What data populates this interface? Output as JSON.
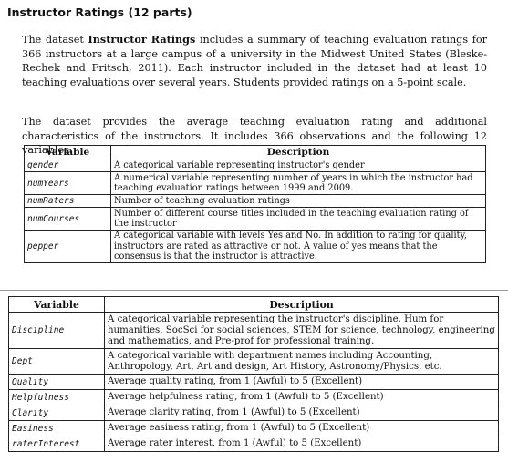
{
  "title": "Instructor Ratings (12 parts)",
  "para1": {
    "before": "The dataset ",
    "bold": "Instructor Ratings",
    "after": " includes a summary of teaching evaluation ratings for 366 instructors at a large campus of a university in the Midwest United States (Bleske-Rechek and Fritsch, 2011). Each instructor included in the dataset had at least 10 teaching evaluations over several years. Students provided ratings on a 5-point scale."
  },
  "para2": "The dataset provides the average teaching evaluation rating and additional characteristics of the instructors. It includes 366 observations and the following 12 variables:",
  "table1": {
    "headers": [
      "Variable",
      "Description"
    ],
    "rows": [
      {
        "var": "gender",
        "desc": "A categorical variable representing instructor's gender"
      },
      {
        "var": "numYears",
        "desc": "A numerical variable representing number of years in which the instructor had teaching evaluation ratings between 1999 and 2009."
      },
      {
        "var": "numRaters",
        "desc": "Number of teaching evaluation ratings"
      },
      {
        "var": "numCourses",
        "desc": "Number of different course titles included in the teaching evaluation rating of the instructor"
      },
      {
        "var": "pepper",
        "desc": "A categorical variable with levels Yes and No. In addition to rating for quality, instructors are rated as attractive or not. A value of yes means that the consensus is that the instructor is attractive."
      }
    ]
  },
  "table2": {
    "headers": [
      "Variable",
      "Description"
    ],
    "rows": [
      {
        "var": "Discipline",
        "desc": "A categorical variable representing the instructor's discipline. Hum for humanities, SocSci for social sciences, STEM for science, technology, engineering and mathematics, and Pre-prof for professional training."
      },
      {
        "var": "Dept",
        "desc": "A categorical variable with department names including Accounting, Anthropology, Art, Art and design, Art History, Astronomy/Physics, etc."
      },
      {
        "var": "Quality",
        "desc": "Average quality rating, from 1 (Awful) to 5 (Excellent)"
      },
      {
        "var": "Helpfulness",
        "desc": "Average helpfulness rating, from 1 (Awful) to 5 (Excellent)"
      },
      {
        "var": "Clarity",
        "desc": "Average clarity rating, from 1 (Awful) to 5 (Excellent)"
      },
      {
        "var": "Easiness",
        "desc": "Average easiness rating, from 1 (Awful) to 5 (Excellent)"
      },
      {
        "var": "raterInterest",
        "desc": "Average rater interest, from 1 (Awful) to 5 (Excellent)"
      }
    ]
  }
}
